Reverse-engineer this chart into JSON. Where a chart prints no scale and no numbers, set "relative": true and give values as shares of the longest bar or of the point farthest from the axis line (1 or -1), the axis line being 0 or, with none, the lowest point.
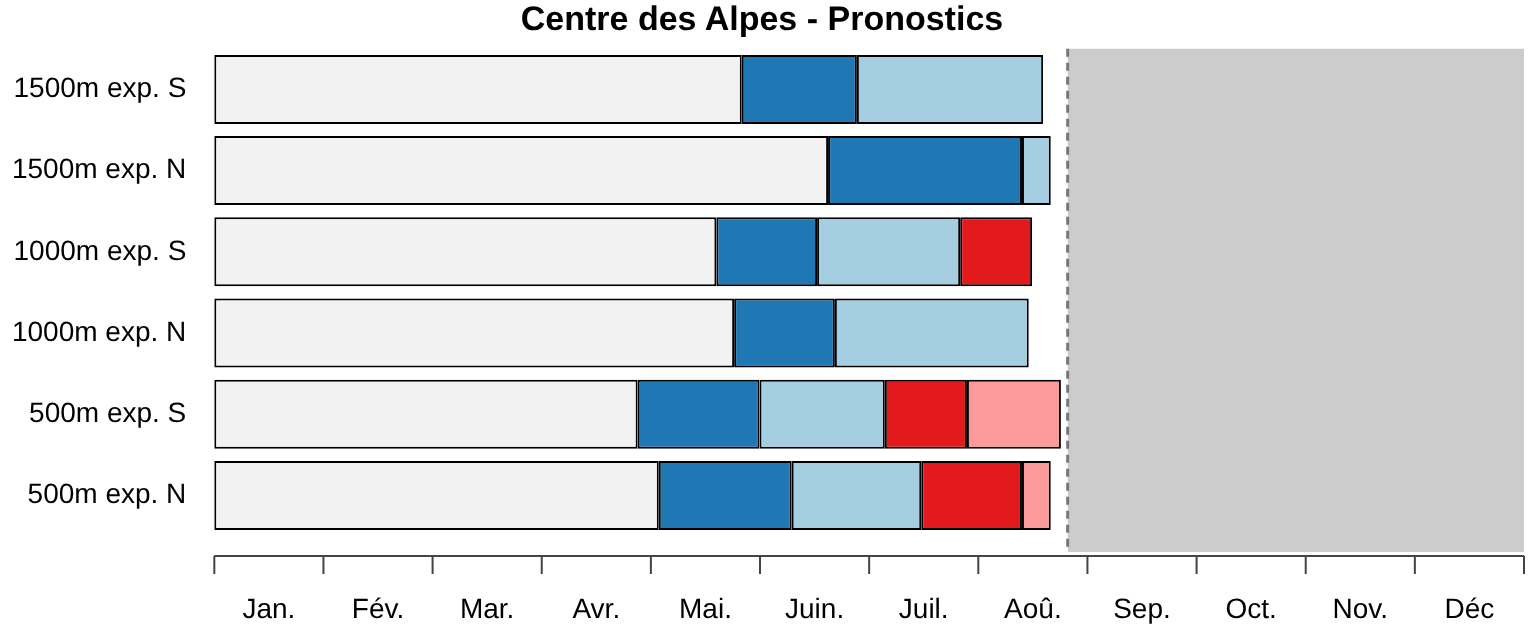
{
  "chart_data": {
    "type": "bar",
    "title": "Centre des Alpes - Pronostics",
    "orientation": "horizontal",
    "stacked": true,
    "relative": true,
    "categories": [
      "1500m exp. S",
      "1500m exp. N",
      "1000m exp. S",
      "1000m exp. N",
      "500m exp. S",
      "500m exp. N"
    ],
    "series": [
      {
        "color": "#f2f2f2",
        "values": [
          0.623,
          0.725,
          0.593,
          0.614,
          0.5,
          0.525
        ]
      },
      {
        "color": "#1f78b4",
        "values": [
          0.136,
          0.229,
          0.119,
          0.119,
          0.144,
          0.157
        ]
      },
      {
        "color": "#a6cee3",
        "values": [
          0.22,
          0.034,
          0.169,
          0.229,
          0.148,
          0.153
        ]
      },
      {
        "color": "#e31a1c",
        "values": [
          null,
          null,
          0.085,
          null,
          0.097,
          0.119
        ]
      },
      {
        "color": "#fb9a99",
        "values": [
          null,
          null,
          null,
          null,
          0.111,
          0.034
        ]
      }
    ],
    "annotations": [
      "Jan.",
      "Fév.",
      "Mar.",
      "Avr.",
      "Mai.",
      "Juin.",
      "Juil.",
      "Aoû.",
      "Sep.",
      "Oct.",
      "Nov.",
      "Déc"
    ],
    "bands": [
      {
        "axis": "x",
        "from": 1.008,
        "to": 1.547,
        "color": "#cccccc"
      }
    ],
    "ref_lines": [
      {
        "axis": "x",
        "value": 1.008,
        "color": "#777777",
        "line_style": "dashed"
      }
    ]
  }
}
